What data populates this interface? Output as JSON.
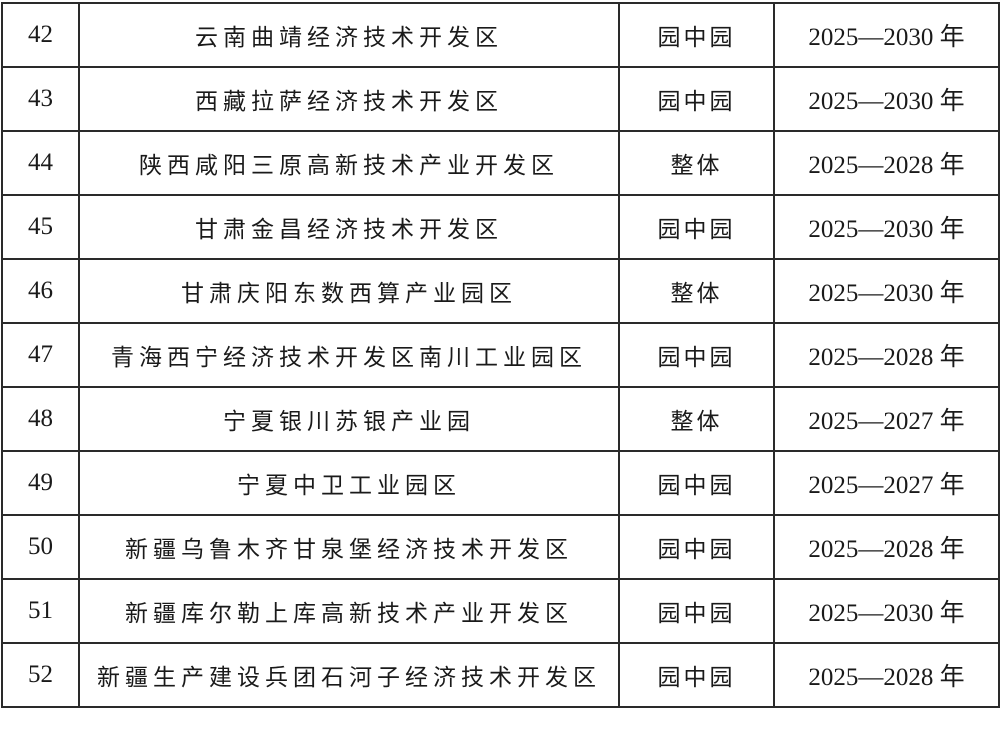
{
  "rows": [
    {
      "no": "42",
      "name": "云南曲靖经济技术开发区",
      "type": "园中园",
      "period": "2025—2030 年"
    },
    {
      "no": "43",
      "name": "西藏拉萨经济技术开发区",
      "type": "园中园",
      "period": "2025—2030 年"
    },
    {
      "no": "44",
      "name": "陕西咸阳三原高新技术产业开发区",
      "type": "整体",
      "period": "2025—2028 年"
    },
    {
      "no": "45",
      "name": "甘肃金昌经济技术开发区",
      "type": "园中园",
      "period": "2025—2030 年"
    },
    {
      "no": "46",
      "name": "甘肃庆阳东数西算产业园区",
      "type": "整体",
      "period": "2025—2030 年"
    },
    {
      "no": "47",
      "name": "青海西宁经济技术开发区南川工业园区",
      "type": "园中园",
      "period": "2025—2028 年"
    },
    {
      "no": "48",
      "name": "宁夏银川苏银产业园",
      "type": "整体",
      "period": "2025—2027 年"
    },
    {
      "no": "49",
      "name": "宁夏中卫工业园区",
      "type": "园中园",
      "period": "2025—2027 年"
    },
    {
      "no": "50",
      "name": "新疆乌鲁木齐甘泉堡经济技术开发区",
      "type": "园中园",
      "period": "2025—2028 年"
    },
    {
      "no": "51",
      "name": "新疆库尔勒上库高新技术产业开发区",
      "type": "园中园",
      "period": "2025—2030 年"
    },
    {
      "no": "52",
      "name": "新疆生产建设兵团石河子经济技术开发区",
      "type": "园中园",
      "period": "2025—2028 年"
    }
  ]
}
